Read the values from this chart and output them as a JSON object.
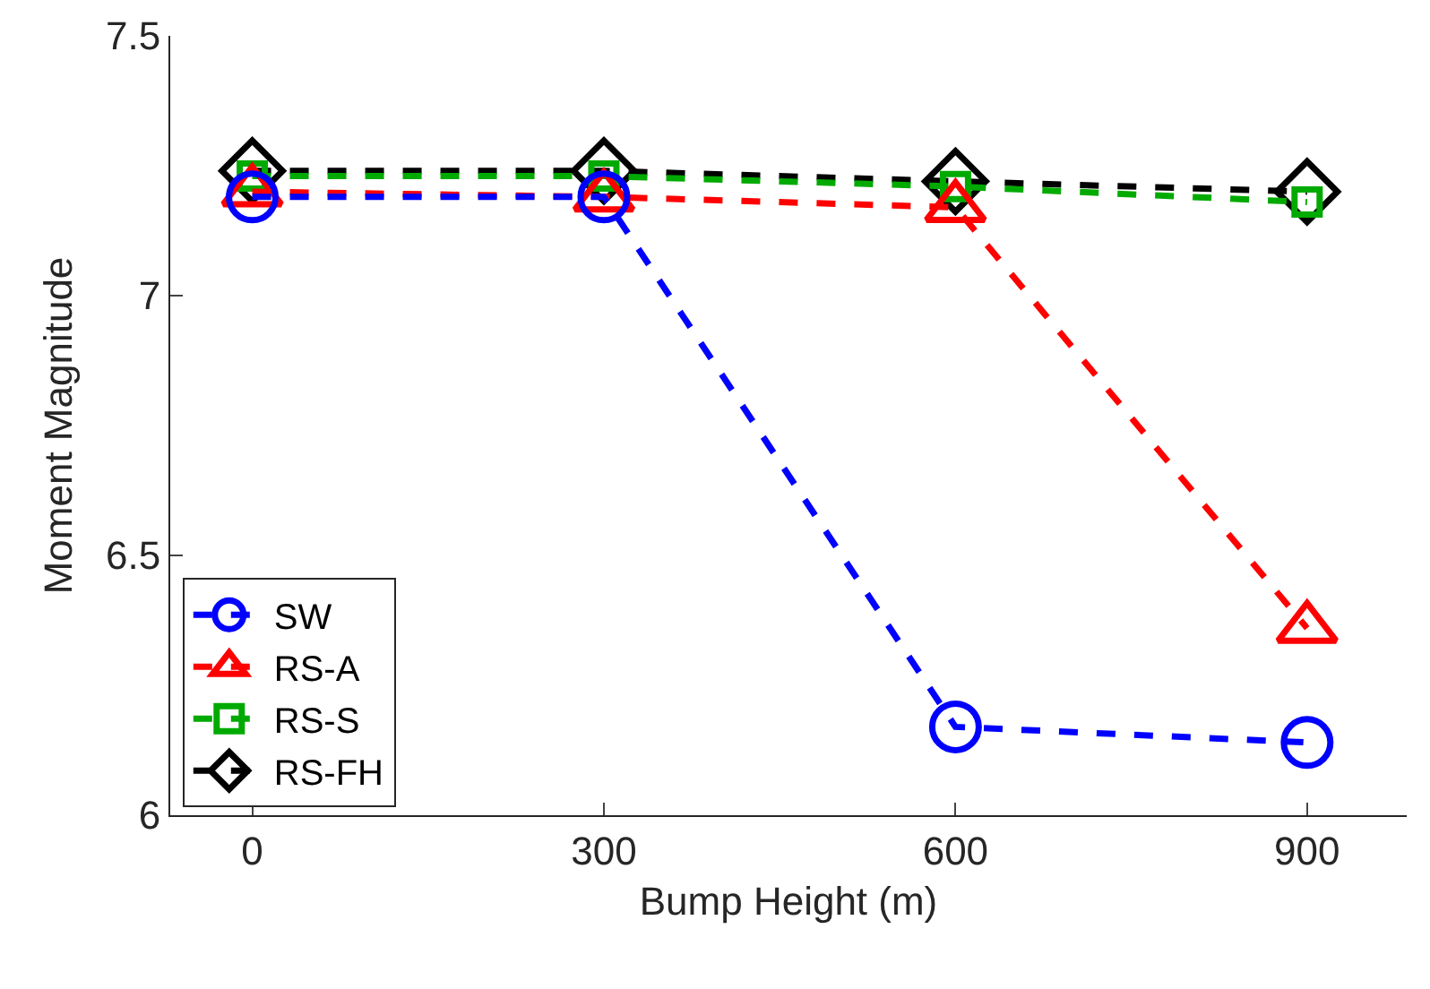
{
  "chart_data": {
    "type": "line",
    "xlabel": "Bump Height (m)",
    "ylabel": "Moment Magnitude",
    "x": [
      0,
      300,
      600,
      900
    ],
    "xlim": [
      -70,
      985
    ],
    "xticks": [
      0,
      300,
      600,
      900
    ],
    "ylim": [
      6,
      7.5
    ],
    "yticks": [
      6,
      {
        "value": 6.5,
        "label": "6.5"
      },
      7,
      {
        "value": 7.5,
        "label": "7.5"
      }
    ],
    "series": [
      {
        "name": "SW",
        "color": "#0000ff",
        "marker": "circle",
        "values": [
          7.19,
          7.19,
          6.17,
          6.14
        ]
      },
      {
        "name": "RS-A",
        "color": "#ff0000",
        "marker": "triangle",
        "values": [
          7.2,
          7.19,
          7.17,
          6.36
        ]
      },
      {
        "name": "RS-S",
        "color": "#00aa00",
        "marker": "square",
        "values": [
          7.23,
          7.23,
          7.21,
          7.18
        ]
      },
      {
        "name": "RS-FH",
        "color": "#000000",
        "marker": "diamond",
        "values": [
          7.24,
          7.24,
          7.22,
          7.2
        ]
      }
    ],
    "line_style": "dashed",
    "grid": false,
    "legend": "bottom left"
  }
}
